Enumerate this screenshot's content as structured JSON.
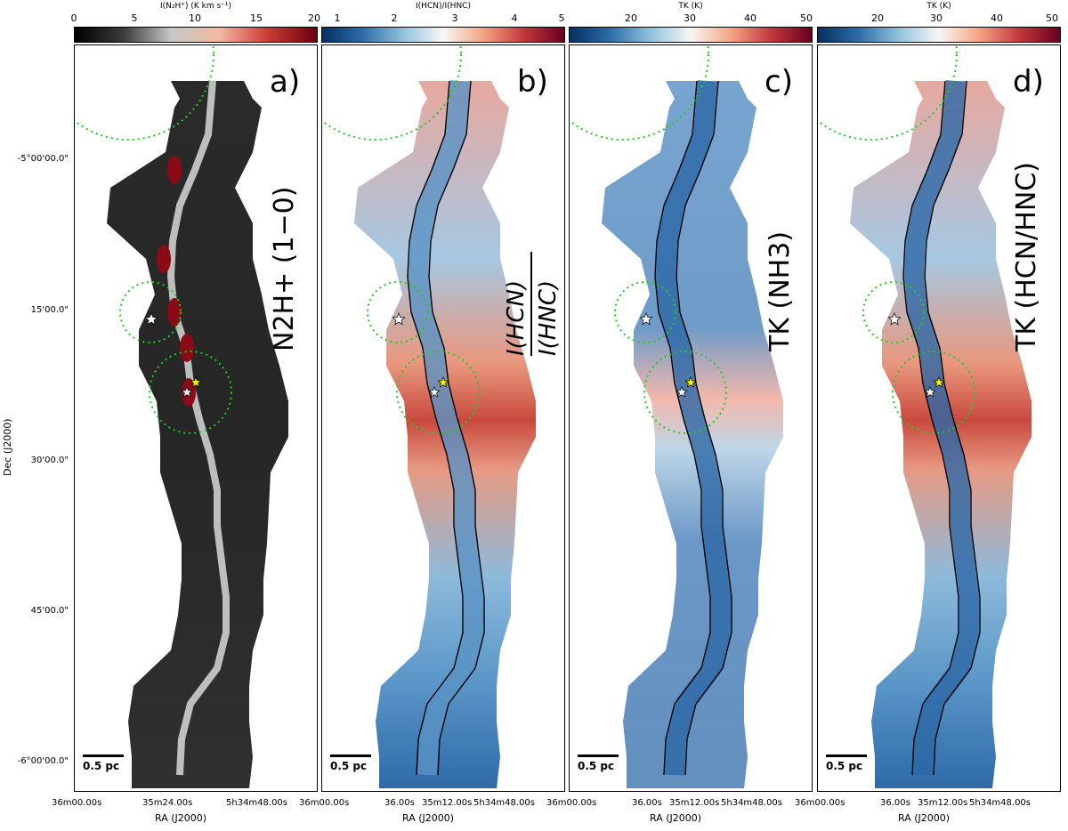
{
  "figure": {
    "panels": [
      {
        "letter": "a)",
        "label": "N2H+ (1−0)",
        "colorbar_title": "I(N₂H⁺) (K km s⁻¹)",
        "colorbar_ticks": [
          "0",
          "5",
          "10",
          "15",
          "20"
        ],
        "colormap": "gray-red",
        "gradient": [
          "#000000",
          "#3a3a3a",
          "#c8c8c8",
          "#f2b8a0",
          "#c83b32",
          "#6b0010"
        ]
      },
      {
        "letter": "b)",
        "label_numerator": "I(HCN)",
        "label_denominator": "I(HNC)",
        "colorbar_title": "I(HCN)/I(HNC)",
        "colorbar_ticks": [
          "1",
          "2",
          "3",
          "4",
          "5"
        ],
        "colormap": "RdBu_r",
        "gradient": [
          "#053061",
          "#2b6ca9",
          "#8fc2dd",
          "#f7f7f7",
          "#f4a582",
          "#c1373b",
          "#67001f"
        ]
      },
      {
        "letter": "c)",
        "label": "TK (NH3)",
        "colorbar_title": "TK (K)",
        "colorbar_ticks": [
          "20",
          "30",
          "40",
          "50"
        ],
        "colormap": "RdBu_r",
        "gradient": [
          "#053061",
          "#2b6ca9",
          "#8fc2dd",
          "#f7f7f7",
          "#f4a582",
          "#c1373b",
          "#67001f"
        ]
      },
      {
        "letter": "d)",
        "label": "TK (HCN/HNC)",
        "colorbar_title": "TK (K)",
        "colorbar_ticks": [
          "20",
          "30",
          "40",
          "50"
        ],
        "colormap": "RdBu_r",
        "gradient": [
          "#053061",
          "#2b6ca9",
          "#8fc2dd",
          "#f7f7f7",
          "#f4a582",
          "#c1373b",
          "#67001f"
        ]
      }
    ],
    "scale_bar": "0.5 pc",
    "dec_axis": {
      "title": "Dec (J2000)",
      "ticks": [
        "-5°00'00.0\"",
        "15'00.0\"",
        "30'00.0\"",
        "45'00.0\"",
        "-6°00'00.0\""
      ]
    },
    "ra_axis": {
      "title": "RA (J2000)",
      "panel_a_ticks": [
        "36m00.00s",
        "35m24.00s",
        "5h34m48.00s"
      ],
      "panel_bcd_ticks": [
        "36m00.00s",
        "36.00s",
        "35m12.00s",
        "5h34m48.00s"
      ]
    },
    "colors": {
      "circle": "#22cc22",
      "star_yellow": "#ffee00",
      "star_white": "#ffffff",
      "contour": "#000000"
    }
  }
}
